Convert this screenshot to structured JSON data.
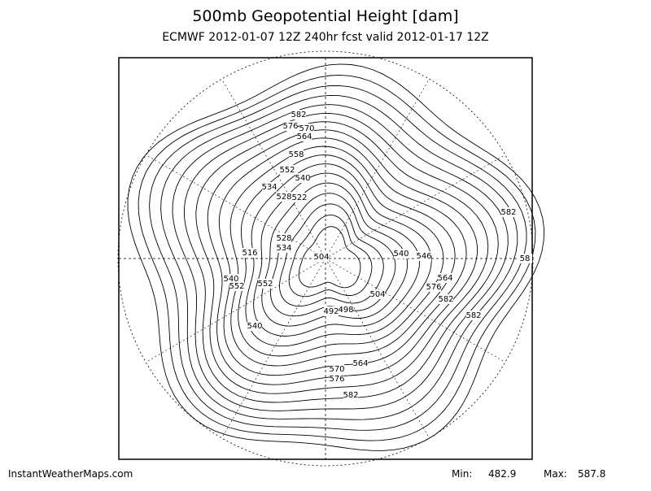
{
  "header": {
    "title": "500mb Geopotential Height [dam]",
    "subtitle": "ECMWF 2012-01-07 12Z 240hr fcst valid 2012-01-17 12Z"
  },
  "map": {
    "contour_labels": [
      582,
      576,
      570,
      564,
      558,
      552,
      540,
      534,
      528,
      522,
      516,
      528,
      534,
      504,
      540,
      546,
      564,
      540,
      552,
      552,
      540,
      504,
      498,
      492,
      564,
      570,
      576,
      582,
      576,
      582,
      582,
      582,
      58
    ]
  },
  "footer": {
    "source": "InstantWeatherMaps.com",
    "min_label": "Min:",
    "min": 482.9,
    "max_label": "Max:",
    "max": 587.8
  }
}
